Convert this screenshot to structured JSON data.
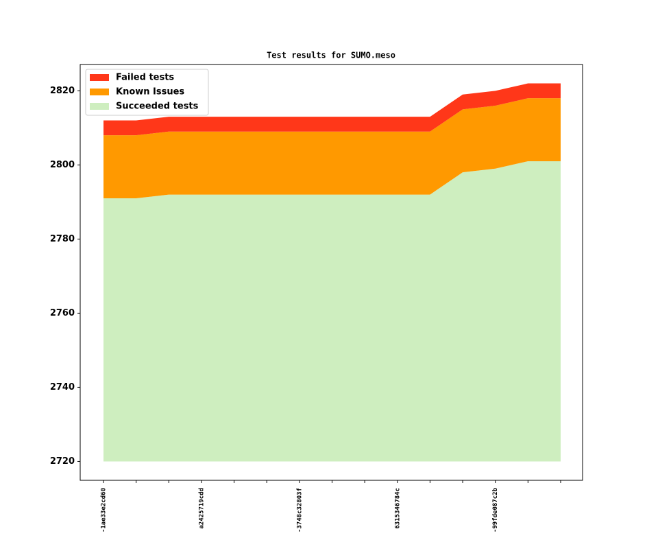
{
  "chart_data": {
    "type": "stacked-area",
    "title": "Test results for SUMO.meso",
    "categories": [
      "-1ae33e2cd60",
      null,
      null,
      "a2425719cdd",
      null,
      null,
      "-3748c32803f",
      null,
      null,
      "6315346784c",
      null,
      null,
      "-99fde087c2b",
      null,
      null
    ],
    "series": [
      {
        "name": "Failed tests",
        "color": "#ff3719",
        "values": [
          4,
          4,
          4,
          4,
          4,
          4,
          4,
          4,
          4,
          4,
          4,
          4,
          4,
          4,
          4
        ]
      },
      {
        "name": "Known Issues",
        "color": "#ff9900",
        "values": [
          17,
          17,
          17,
          17,
          17,
          17,
          17,
          17,
          17,
          17,
          17,
          17,
          17,
          17,
          17
        ]
      },
      {
        "name": "Succeeded tests",
        "color": "#ceeebf",
        "values": [
          2791,
          2791,
          2792,
          2792,
          2792,
          2792,
          2792,
          2792,
          2792,
          2792,
          2792,
          2798,
          2799,
          2801,
          2801
        ]
      }
    ],
    "ylim": [
      2714.9,
      2827.1
    ],
    "yticks": [
      2720,
      2740,
      2760,
      2780,
      2800,
      2820
    ],
    "legend": "upper left"
  }
}
